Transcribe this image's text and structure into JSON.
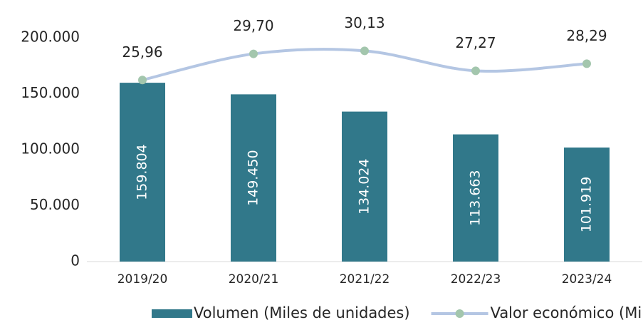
{
  "chart_data": {
    "type": "bar+line",
    "categories": [
      "2019/20",
      "2020/21",
      "2021/22",
      "2022/23",
      "2023/24"
    ],
    "series": [
      {
        "name": "Volumen (Miles de unidades)",
        "type": "bar",
        "color": "#31788a",
        "values": [
          159804,
          149450,
          134024,
          113663,
          101919
        ],
        "value_labels": [
          "159.804",
          "149.450",
          "134.024",
          "113.663",
          "101.919"
        ]
      },
      {
        "name": "Valor económico (Mill. €)",
        "type": "line",
        "axis": "y2",
        "color": "#b4c6e3",
        "marker_color": "#a3c6ad",
        "values": [
          25.96,
          29.7,
          30.13,
          27.27,
          28.29
        ],
        "value_labels": [
          "25,96",
          "29,70",
          "30,13",
          "27,27",
          "28,29"
        ]
      }
    ],
    "ylim": [
      0,
      200000
    ],
    "yticks": [
      0,
      {
        "value": 50000,
        "label": "50.000"
      },
      {
        "value": 100000,
        "label": "100.000"
      },
      {
        "value": 150000,
        "label": "150.000"
      },
      {
        "value": 200000,
        "label": "200.000"
      }
    ],
    "y2lim": [
      0,
      32
    ],
    "grid": false,
    "legend": "bottom"
  }
}
